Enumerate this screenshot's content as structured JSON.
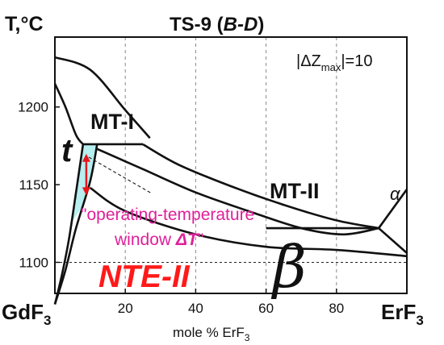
{
  "title_main": "TS-9 (",
  "title_ital": "B-D",
  "title_end": ")",
  "y_axis_unit": "T,°C",
  "x_axis_label_pre": "mole % ErF",
  "x_axis_label_sub": "3",
  "left_component": "GdF",
  "left_component_sub": "3",
  "right_component": "ErF",
  "right_component_sub": "3",
  "delta_z_pre": "|ΔZ",
  "delta_z_sub": "max",
  "delta_z_post": "|=10",
  "phase_labels": {
    "mt1": "MT-I",
    "mt2": "MT-II",
    "t": "t",
    "alpha": "α",
    "beta": "β",
    "nte": "NTE-II"
  },
  "annotation_line1": "\"operating-temperature",
  "annotation_line2_pre": "window ",
  "annotation_line2_delta": "ΔT",
  "annotation_line2_post": "\"",
  "colors": {
    "curve": "#111111",
    "window_fill": "#b7eef0",
    "arrow": "#e8141c",
    "annotation": "#e0209a",
    "nte": "#ff1a1a",
    "grid": "#888888"
  },
  "chart_data": {
    "type": "phase-diagram",
    "x_range": [
      0,
      100
    ],
    "y_range": [
      1080,
      1245
    ],
    "x_ticks": [
      20,
      40,
      60,
      80
    ],
    "y_ticks": [
      1100,
      1150,
      1200
    ],
    "eutectic_temperature_reference": 1100,
    "phase_boundaries": [
      {
        "name": "upper-dome",
        "points": [
          [
            0,
            1232
          ],
          [
            10,
            1224
          ],
          [
            20,
            1198
          ],
          [
            27,
            1180
          ]
        ]
      },
      {
        "name": "upper-liquidus-left",
        "points": [
          [
            0,
            1215
          ],
          [
            3,
            1200
          ],
          [
            6,
            1182
          ],
          [
            8,
            1176
          ]
        ]
      },
      {
        "name": "mt1-plateau",
        "points": [
          [
            8,
            1176
          ],
          [
            25,
            1176
          ]
        ]
      },
      {
        "name": "upper-long-boundary",
        "points": [
          [
            25,
            1176
          ],
          [
            35,
            1163
          ],
          [
            50,
            1149
          ],
          [
            65,
            1137
          ],
          [
            80,
            1127
          ],
          [
            92,
            1122
          ]
        ]
      },
      {
        "name": "lower-long-boundary",
        "points": [
          [
            12,
            1173
          ],
          [
            25,
            1160
          ],
          [
            40,
            1145
          ],
          [
            55,
            1133
          ],
          [
            70,
            1122
          ],
          [
            82,
            1118
          ],
          [
            92,
            1122
          ]
        ]
      },
      {
        "name": "mt2-plateau",
        "points": [
          [
            60,
            1122
          ],
          [
            92,
            1122
          ]
        ]
      },
      {
        "name": "alpha-upper",
        "points": [
          [
            92,
            1122
          ],
          [
            100,
            1147
          ]
        ]
      },
      {
        "name": "alpha-lower",
        "points": [
          [
            92,
            1122
          ],
          [
            100,
            1106
          ]
        ]
      },
      {
        "name": "lower-right-boundary",
        "points": [
          [
            10,
            1148
          ],
          [
            20,
            1133
          ],
          [
            40,
            1118
          ],
          [
            60,
            1110
          ],
          [
            80,
            1108
          ],
          [
            100,
            1104
          ]
        ]
      },
      {
        "name": "t-region-left",
        "points": [
          [
            0,
            1073
          ],
          [
            2,
            1092
          ],
          [
            4,
            1115
          ],
          [
            6,
            1145
          ],
          [
            8,
            1176
          ]
        ]
      },
      {
        "name": "t-region-right",
        "points": [
          [
            12,
            1176
          ],
          [
            10,
            1152
          ],
          [
            6,
            1122
          ],
          [
            3,
            1095
          ],
          [
            0,
            1073
          ]
        ]
      }
    ],
    "operating_window": {
      "x": 8,
      "y_from": 1172,
      "y_to": 1141
    }
  }
}
